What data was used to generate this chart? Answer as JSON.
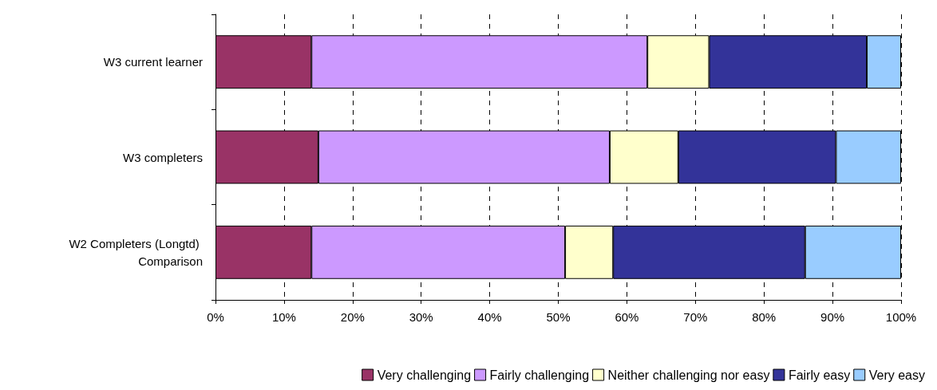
{
  "chart_data": {
    "type": "bar",
    "orientation": "horizontal",
    "stacked": true,
    "categories": [
      "W3 current learner",
      "W3 completers",
      "W2 Completers (Longtd) Comparison"
    ],
    "series": [
      {
        "name": "Very challenging",
        "color": "#993366",
        "values": [
          14,
          15,
          14
        ]
      },
      {
        "name": "Fairly challenging",
        "color": "#cc99ff",
        "values": [
          49,
          42.5,
          37
        ]
      },
      {
        "name": "Neither challenging nor easy",
        "color": "#ffffcc",
        "values": [
          9,
          10,
          7
        ]
      },
      {
        "name": "Fairly easy",
        "color": "#333399",
        "values": [
          23,
          23,
          28
        ]
      },
      {
        "name": "Very easy",
        "color": "#99ccff",
        "values": [
          5,
          9.5,
          14
        ]
      }
    ],
    "xlim": [
      0,
      100
    ],
    "xticks": [
      {
        "value": 0,
        "label": "0%"
      },
      {
        "value": 10,
        "label": "10%"
      },
      {
        "value": 20,
        "label": "20%"
      },
      {
        "value": 30,
        "label": "30%"
      },
      {
        "value": 40,
        "label": "40%"
      },
      {
        "value": 50,
        "label": "50%"
      },
      {
        "value": 60,
        "label": "60%"
      },
      {
        "value": 70,
        "label": "70%"
      },
      {
        "value": 80,
        "label": "80%"
      },
      {
        "value": 90,
        "label": "90%"
      },
      {
        "value": 100,
        "label": "100%"
      }
    ],
    "grid": "x",
    "legend": "bottom right"
  }
}
